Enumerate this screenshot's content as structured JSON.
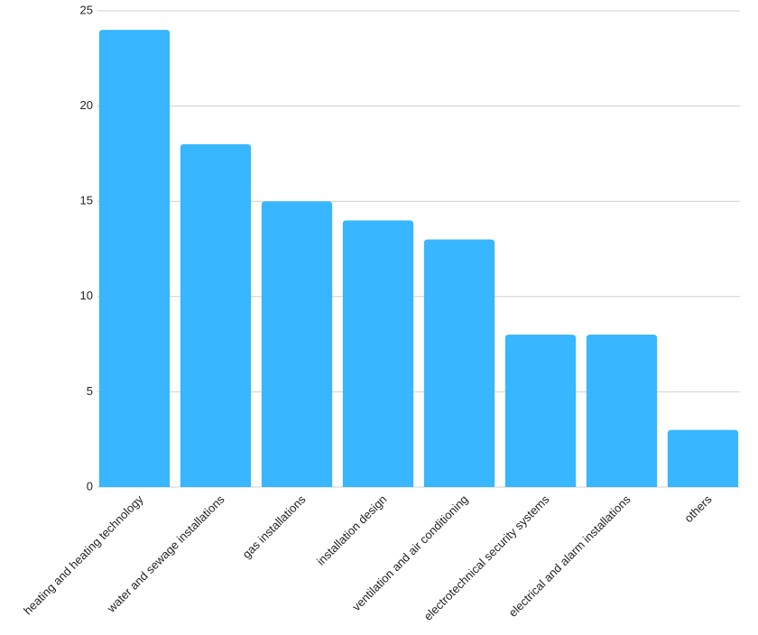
{
  "chart_data": {
    "type": "bar",
    "categories": [
      "heating and heating technology",
      "water and sewage installations",
      "gas installations",
      "installation design",
      "ventilation and air conditioning",
      "electrotechnical security systems",
      "electrical and alarm installations",
      "others"
    ],
    "values": [
      24,
      18,
      15,
      14,
      13,
      8,
      8,
      3
    ],
    "color": "#38b6ff",
    "ylim": [
      0,
      25
    ],
    "yticks": [
      0,
      5,
      10,
      15,
      20,
      25
    ],
    "grid": true
  }
}
